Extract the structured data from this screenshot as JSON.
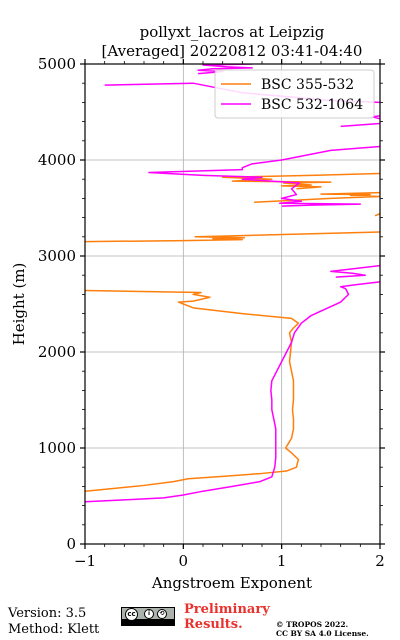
{
  "chart_data": {
    "type": "line",
    "title": [
      "pollyxt_lacros at Leipzig",
      "[Averaged] 20220812 03:41-04:40"
    ],
    "xlabel": "Angstroem Exponent",
    "ylabel": "Height (m)",
    "xlim": [
      -1,
      2
    ],
    "ylim": [
      0,
      5000
    ],
    "xticks": [
      -1,
      0,
      1,
      2
    ],
    "yticks": [
      0,
      1000,
      2000,
      3000,
      4000,
      5000
    ],
    "xtick_labels": [
      "−1",
      "0",
      "1",
      "2"
    ],
    "ytick_labels": [
      "0",
      "1000",
      "2000",
      "3000",
      "4000",
      "5000"
    ],
    "grid": true,
    "legend_position": "top-right",
    "series": [
      {
        "name": "BSC 355-532",
        "color": "#ff7f0e",
        "points": [
          [
            -1.0,
            550
          ],
          [
            -0.7,
            580
          ],
          [
            -0.4,
            610
          ],
          [
            -0.1,
            650
          ],
          [
            0.05,
            680
          ],
          [
            0.4,
            705
          ],
          [
            0.8,
            735
          ],
          [
            1.05,
            760
          ],
          [
            1.15,
            800
          ],
          [
            1.17,
            880
          ],
          [
            1.1,
            950
          ],
          [
            1.04,
            1000
          ],
          [
            1.07,
            1050
          ],
          [
            1.1,
            1100
          ],
          [
            1.12,
            1200
          ],
          [
            1.12,
            1300
          ],
          [
            1.11,
            1400
          ],
          [
            1.12,
            1500
          ],
          [
            1.12,
            1600
          ],
          [
            1.12,
            1700
          ],
          [
            1.1,
            1800
          ],
          [
            1.08,
            1900
          ],
          [
            1.09,
            2000
          ],
          [
            1.1,
            2100
          ],
          [
            1.08,
            2200
          ],
          [
            1.12,
            2250
          ],
          [
            1.17,
            2300
          ],
          [
            1.1,
            2350
          ],
          [
            0.6,
            2400
          ],
          [
            0.1,
            2460
          ],
          [
            -0.05,
            2520
          ],
          [
            0.1,
            2530
          ],
          [
            0.27,
            2570
          ],
          [
            0.1,
            2600
          ],
          [
            0.18,
            2620
          ],
          [
            -1.0,
            2640
          ],
          null,
          [
            -1.0,
            3150
          ],
          [
            0.0,
            3160
          ],
          [
            0.6,
            3170
          ],
          [
            0.3,
            3180
          ],
          [
            0.62,
            3190
          ],
          [
            0.12,
            3200
          ],
          [
            0.5,
            3210
          ],
          [
            2.0,
            3250
          ],
          null,
          [
            1.95,
            3420
          ],
          [
            2.0,
            3440
          ],
          null,
          [
            0.72,
            3560
          ],
          [
            1.1,
            3580
          ],
          [
            1.5,
            3600
          ],
          [
            2.0,
            3620
          ],
          [
            1.7,
            3630
          ],
          [
            1.9,
            3640
          ],
          [
            1.4,
            3645
          ],
          [
            2.0,
            3660
          ],
          null,
          [
            1.15,
            3700
          ],
          [
            1.4,
            3720
          ],
          [
            1.0,
            3730
          ],
          [
            1.3,
            3740
          ],
          [
            1.02,
            3760
          ],
          [
            1.5,
            3770
          ],
          [
            0.5,
            3780
          ],
          [
            0.9,
            3800
          ],
          [
            0.4,
            3820
          ],
          [
            1.3,
            3840
          ],
          [
            2.0,
            3860
          ]
        ]
      },
      {
        "name": "BSC 532-1064",
        "color": "#ff00ff",
        "points": [
          [
            -1.0,
            440
          ],
          [
            -0.6,
            460
          ],
          [
            -0.2,
            480
          ],
          [
            0.0,
            510
          ],
          [
            0.2,
            550
          ],
          [
            0.5,
            600
          ],
          [
            0.78,
            650
          ],
          [
            0.9,
            700
          ],
          [
            0.93,
            800
          ],
          [
            0.94,
            900
          ],
          [
            0.94,
            1000
          ],
          [
            0.94,
            1100
          ],
          [
            0.94,
            1200
          ],
          [
            0.92,
            1300
          ],
          [
            0.9,
            1400
          ],
          [
            0.9,
            1500
          ],
          [
            0.89,
            1600
          ],
          [
            0.9,
            1700
          ],
          [
            0.95,
            1800
          ],
          [
            1.0,
            1900
          ],
          [
            1.05,
            2000
          ],
          [
            1.1,
            2100
          ],
          [
            1.13,
            2200
          ],
          [
            1.2,
            2300
          ],
          [
            1.3,
            2380
          ],
          [
            1.45,
            2450
          ],
          [
            1.6,
            2520
          ],
          [
            1.68,
            2600
          ],
          [
            1.65,
            2660
          ],
          [
            1.6,
            2680
          ],
          [
            1.75,
            2700
          ],
          [
            2.0,
            2730
          ],
          null,
          [
            1.55,
            2780
          ],
          [
            1.85,
            2800
          ],
          [
            1.72,
            2820
          ],
          [
            1.5,
            2840
          ],
          [
            2.0,
            2900
          ],
          null,
          [
            1.0,
            3520
          ],
          [
            1.3,
            3530
          ],
          [
            1.8,
            3540
          ],
          [
            0.98,
            3550
          ],
          [
            1.2,
            3570
          ],
          [
            1.0,
            3600
          ],
          [
            1.15,
            3640
          ],
          [
            1.1,
            3700
          ],
          [
            1.18,
            3760
          ],
          [
            0.6,
            3800
          ],
          [
            0.8,
            3820
          ],
          [
            0.2,
            3840
          ],
          [
            -0.35,
            3870
          ],
          [
            0.6,
            3900
          ],
          [
            0.6,
            3920
          ],
          [
            0.7,
            3960
          ],
          [
            1.0,
            4000
          ],
          [
            1.5,
            4100
          ],
          [
            2.0,
            4140
          ],
          null,
          [
            1.6,
            4350
          ],
          [
            2.0,
            4380
          ],
          null,
          [
            2.0,
            4430
          ],
          [
            1.92,
            4450
          ],
          [
            2.0,
            4460
          ],
          null,
          [
            -0.8,
            4780
          ],
          [
            0.1,
            4800
          ],
          [
            0.6,
            4700
          ],
          [
            1.5,
            4620
          ],
          [
            2.0,
            4600
          ],
          null,
          [
            0.15,
            4900
          ],
          [
            0.4,
            4920
          ],
          [
            0.15,
            4935
          ],
          [
            0.3,
            4950
          ],
          [
            0.7,
            4960
          ],
          [
            0.45,
            4970
          ],
          [
            0.2,
            4990
          ],
          [
            0.7,
            5000
          ]
        ]
      }
    ]
  },
  "footer": {
    "version": "Version: 3.5",
    "method": "Method: Klett",
    "preliminary_line1": "Preliminary",
    "preliminary_line2": "Results.",
    "copyright_line1": "© TROPOS 2022.",
    "copyright_line2": "CC BY SA 4.0 License.",
    "license_icon": "cc-by-sa-badge"
  }
}
